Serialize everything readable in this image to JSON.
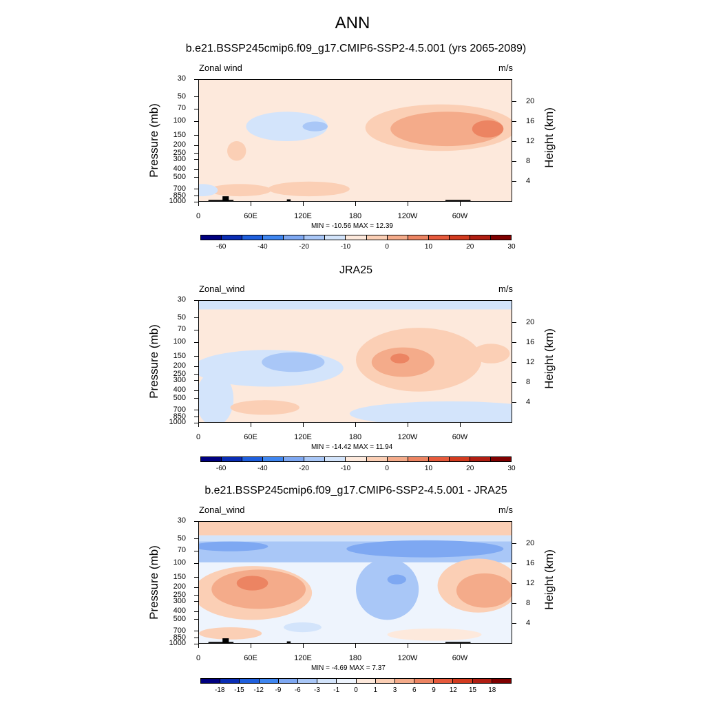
{
  "main_title": "ANN",
  "chart_data": [
    {
      "type": "heatmap",
      "title": "b.e21.BSSP245cmip6.f09_g17.CMIP6-SSP2-4.5.001 (yrs 2065-2089)",
      "field_label": "Zonal wind",
      "units": "m/s",
      "xlabel": "",
      "ylabel": "Pressure (mb)",
      "ylabel_right": "Height (km)",
      "x_ticks": [
        "0",
        "60E",
        "120E",
        "180",
        "120W",
        "60W"
      ],
      "y_ticks": [
        "30",
        "50",
        "70",
        "100",
        "150",
        "200",
        "250",
        "300",
        "400",
        "500",
        "700",
        "850",
        "1000"
      ],
      "height_ticks": [
        "20",
        "16",
        "12",
        "8",
        "4"
      ],
      "min_max": "MIN = -10.56  MAX =  12.39",
      "colorbar_labels": [
        "-60",
        "-40",
        "-20",
        "-10",
        "0",
        "10",
        "20",
        "30"
      ],
      "colorbar_colors": [
        "#00007f",
        "#0a2db4",
        "#1f5fdd",
        "#3f86f0",
        "#7ea8f2",
        "#a9c7f7",
        "#d3e4fb",
        "#fde9dc",
        "#fbcfb5",
        "#f4ab8a",
        "#ec8462",
        "#e65a3c",
        "#d23b1f",
        "#b01e12",
        "#7f0000"
      ]
    },
    {
      "type": "heatmap",
      "title": "JRA25",
      "field_label": "Zonal_wind",
      "units": "m/s",
      "xlabel": "",
      "ylabel": "Pressure (mb)",
      "ylabel_right": "Height (km)",
      "x_ticks": [
        "0",
        "60E",
        "120E",
        "180",
        "120W",
        "60W"
      ],
      "y_ticks": [
        "30",
        "50",
        "70",
        "100",
        "150",
        "200",
        "250",
        "300",
        "400",
        "500",
        "700",
        "850",
        "1000"
      ],
      "height_ticks": [
        "20",
        "16",
        "12",
        "8",
        "4"
      ],
      "min_max": "MIN = -14.42  MAX =  11.94",
      "colorbar_labels": [
        "-60",
        "-40",
        "-20",
        "-10",
        "0",
        "10",
        "20",
        "30"
      ],
      "colorbar_colors": [
        "#00007f",
        "#0a2db4",
        "#1f5fdd",
        "#3f86f0",
        "#7ea8f2",
        "#a9c7f7",
        "#d3e4fb",
        "#fde9dc",
        "#fbcfb5",
        "#f4ab8a",
        "#ec8462",
        "#e65a3c",
        "#d23b1f",
        "#b01e12",
        "#7f0000"
      ]
    },
    {
      "type": "heatmap",
      "title": "b.e21.BSSP245cmip6.f09_g17.CMIP6-SSP2-4.5.001 - JRA25",
      "field_label": "Zonal_wind",
      "units": "m/s",
      "xlabel": "",
      "ylabel": "Pressure (mb)",
      "ylabel_right": "Height (km)",
      "x_ticks": [
        "0",
        "60E",
        "120E",
        "180",
        "120W",
        "60W"
      ],
      "y_ticks": [
        "30",
        "50",
        "70",
        "100",
        "150",
        "200",
        "250",
        "300",
        "400",
        "500",
        "700",
        "850",
        "1000"
      ],
      "height_ticks": [
        "20",
        "16",
        "12",
        "8",
        "4"
      ],
      "min_max": "MIN =  -4.69  MAX =   7.37",
      "colorbar_labels": [
        "-18",
        "-15",
        "-12",
        "-9",
        "-6",
        "-3",
        "-1",
        "0",
        "1",
        "3",
        "6",
        "9",
        "12",
        "15",
        "18"
      ],
      "colorbar_colors": [
        "#00007f",
        "#0a2db4",
        "#1f5fdd",
        "#3f86f0",
        "#7ea8f2",
        "#a9c7f7",
        "#d3e4fb",
        "#eef4fd",
        "#fde9dc",
        "#fbcfb5",
        "#f4ab8a",
        "#ec8462",
        "#e65a3c",
        "#d23b1f",
        "#b01e12",
        "#7f0000"
      ]
    }
  ]
}
